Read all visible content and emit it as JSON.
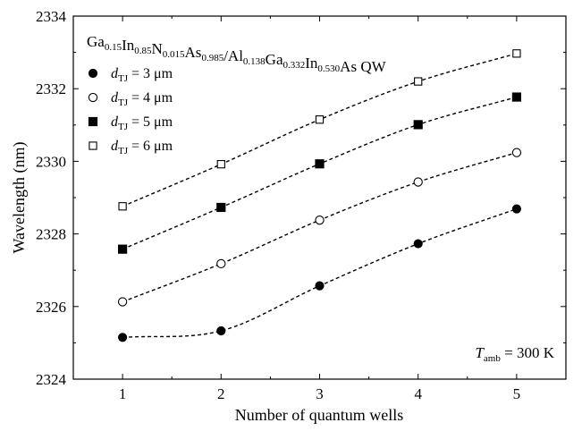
{
  "chart_data": {
    "type": "scatter",
    "title": {
      "parts": [
        {
          "t": "Ga",
          "s": ""
        },
        {
          "t": "0.15",
          "s": "sub"
        },
        {
          "t": "In",
          "s": ""
        },
        {
          "t": "0.85",
          "s": "sub"
        },
        {
          "t": "N",
          "s": ""
        },
        {
          "t": "0.015",
          "s": "sub"
        },
        {
          "t": "As",
          "s": ""
        },
        {
          "t": "0.985",
          "s": "sub"
        },
        {
          "t": "/Al",
          "s": ""
        },
        {
          "t": "0.138",
          "s": "sub"
        },
        {
          "t": "Ga",
          "s": ""
        },
        {
          "t": "0.332",
          "s": "sub"
        },
        {
          "t": "In",
          "s": ""
        },
        {
          "t": "0.530",
          "s": "sub"
        },
        {
          "t": "As QW",
          "s": ""
        }
      ]
    },
    "xlabel": "Number of quantum wells",
    "ylabel": "Wavelength (nm)",
    "xlim": [
      0.5,
      5.5
    ],
    "ylim": [
      2324,
      2334
    ],
    "xticks": [
      1,
      2,
      3,
      4,
      5
    ],
    "yticks": [
      2324,
      2326,
      2328,
      2330,
      2332,
      2334
    ],
    "grid": false,
    "legend_position": "top-left",
    "fit_lines": "dashed",
    "series": [
      {
        "legend_var": "d",
        "legend_sub": "TJ",
        "legend_value": " = 3 μm",
        "marker": "filled-circle",
        "x": [
          1,
          2,
          3,
          4,
          5
        ],
        "values": [
          2325.15,
          2325.33,
          2326.57,
          2327.73,
          2328.69
        ]
      },
      {
        "legend_var": "d",
        "legend_sub": "TJ",
        "legend_value": " = 4 μm",
        "marker": "open-circle",
        "x": [
          1,
          2,
          3,
          4,
          5
        ],
        "values": [
          2326.13,
          2327.18,
          2328.38,
          2329.43,
          2330.24
        ]
      },
      {
        "legend_var": "d",
        "legend_sub": "TJ",
        "legend_value": " = 5 μm",
        "marker": "filled-square",
        "x": [
          1,
          2,
          3,
          4,
          5
        ],
        "values": [
          2327.58,
          2328.73,
          2329.93,
          2331.01,
          2331.77
        ]
      },
      {
        "legend_var": "d",
        "legend_sub": "TJ",
        "legend_value": " = 6 μm",
        "marker": "open-square",
        "x": [
          1,
          2,
          3,
          4,
          5
        ],
        "values": [
          2328.76,
          2329.92,
          2331.15,
          2332.2,
          2332.97
        ]
      }
    ],
    "annotation": {
      "var": "T",
      "sub": "amb",
      "value": " = 300 K",
      "position": "bottom-right"
    }
  }
}
